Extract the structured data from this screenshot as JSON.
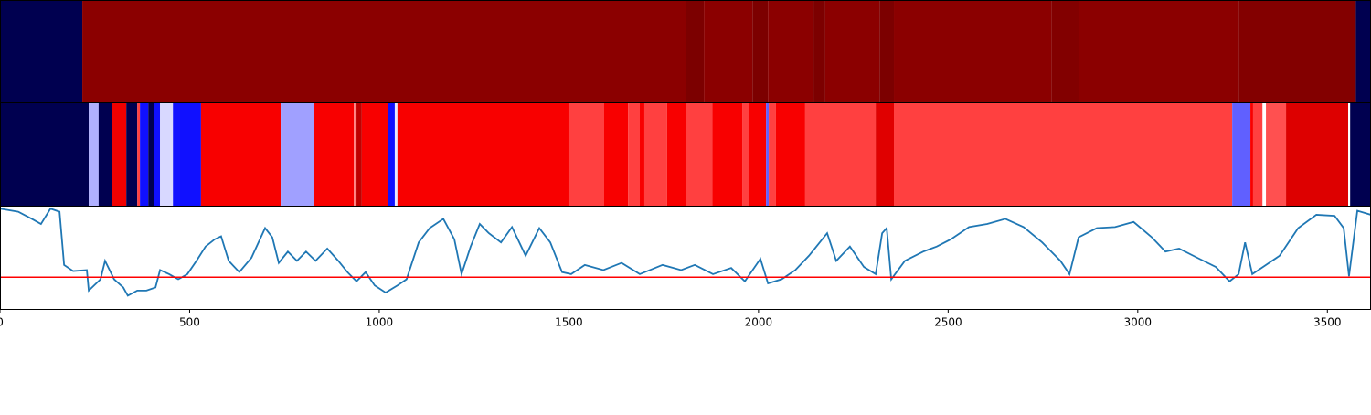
{
  "chart_data": {
    "type": "line",
    "xlim": [
      0,
      3615
    ],
    "xticks": [
      0,
      500,
      1000,
      1500,
      2000,
      2500,
      3000,
      3500
    ],
    "ylim": [
      0,
      1
    ],
    "strips": [
      {
        "segments": [
          {
            "start": 0,
            "end": 217,
            "color": "#000050"
          },
          {
            "start": 217,
            "end": 1808,
            "color": "#8b0000"
          },
          {
            "start": 1808,
            "end": 1856,
            "color": "#7c0000"
          },
          {
            "start": 1856,
            "end": 1984,
            "color": "#8b0000"
          },
          {
            "start": 1984,
            "end": 2025,
            "color": "#7c0000"
          },
          {
            "start": 2025,
            "end": 2145,
            "color": "#8b0000"
          },
          {
            "start": 2145,
            "end": 2176,
            "color": "#7c0000"
          },
          {
            "start": 2176,
            "end": 2319,
            "color": "#8b0000"
          },
          {
            "start": 2319,
            "end": 2357,
            "color": "#7c0000"
          },
          {
            "start": 2357,
            "end": 2772,
            "color": "#8b0000"
          },
          {
            "start": 2772,
            "end": 2844,
            "color": "#820000"
          },
          {
            "start": 2844,
            "end": 3266,
            "color": "#8b0000"
          },
          {
            "start": 3266,
            "end": 3575,
            "color": "#830000"
          },
          {
            "start": 3575,
            "end": 3615,
            "color": "#000050"
          }
        ]
      },
      {
        "segments": [
          {
            "start": 0,
            "end": 234,
            "color": "#000050"
          },
          {
            "start": 234,
            "end": 260,
            "color": "#b0b0ff"
          },
          {
            "start": 260,
            "end": 296,
            "color": "#000050"
          },
          {
            "start": 296,
            "end": 333,
            "color": "#f00000"
          },
          {
            "start": 333,
            "end": 362,
            "color": "#000050"
          },
          {
            "start": 362,
            "end": 369,
            "color": "#ff4040"
          },
          {
            "start": 369,
            "end": 391,
            "color": "#1010ff"
          },
          {
            "start": 391,
            "end": 405,
            "color": "#000050"
          },
          {
            "start": 405,
            "end": 422,
            "color": "#1010ff"
          },
          {
            "start": 422,
            "end": 456,
            "color": "#d8d8ff"
          },
          {
            "start": 456,
            "end": 530,
            "color": "#1010ff"
          },
          {
            "start": 530,
            "end": 740,
            "color": "#f80000"
          },
          {
            "start": 740,
            "end": 827,
            "color": "#a0a0ff"
          },
          {
            "start": 827,
            "end": 933,
            "color": "#f80000"
          },
          {
            "start": 933,
            "end": 940,
            "color": "#ff8080"
          },
          {
            "start": 940,
            "end": 954,
            "color": "#c00000"
          },
          {
            "start": 954,
            "end": 1024,
            "color": "#f80000"
          },
          {
            "start": 1024,
            "end": 1041,
            "color": "#1010ff"
          },
          {
            "start": 1041,
            "end": 1048,
            "color": "#e8e8ff"
          },
          {
            "start": 1048,
            "end": 1499,
            "color": "#f80000"
          },
          {
            "start": 1499,
            "end": 1593,
            "color": "#ff4040"
          },
          {
            "start": 1593,
            "end": 1656,
            "color": "#f80000"
          },
          {
            "start": 1656,
            "end": 1687,
            "color": "#ff4040"
          },
          {
            "start": 1687,
            "end": 1699,
            "color": "#f80000"
          },
          {
            "start": 1699,
            "end": 1759,
            "color": "#ff4040"
          },
          {
            "start": 1759,
            "end": 1808,
            "color": "#f80000"
          },
          {
            "start": 1808,
            "end": 1878,
            "color": "#ff4040"
          },
          {
            "start": 1878,
            "end": 1957,
            "color": "#f80000"
          },
          {
            "start": 1957,
            "end": 1976,
            "color": "#ff4040"
          },
          {
            "start": 1976,
            "end": 2020,
            "color": "#f80000"
          },
          {
            "start": 2020,
            "end": 2027,
            "color": "#6060ff"
          },
          {
            "start": 2027,
            "end": 2046,
            "color": "#ff4040"
          },
          {
            "start": 2046,
            "end": 2123,
            "color": "#f80000"
          },
          {
            "start": 2123,
            "end": 2309,
            "color": "#ff4040"
          },
          {
            "start": 2309,
            "end": 2357,
            "color": "#e00000"
          },
          {
            "start": 2357,
            "end": 3249,
            "color": "#ff4040"
          },
          {
            "start": 3249,
            "end": 3297,
            "color": "#6060ff"
          },
          {
            "start": 3297,
            "end": 3304,
            "color": "#f80000"
          },
          {
            "start": 3304,
            "end": 3329,
            "color": "#ff4040"
          },
          {
            "start": 3329,
            "end": 3338,
            "color": "#ffffff"
          },
          {
            "start": 3338,
            "end": 3391,
            "color": "#ff5050"
          },
          {
            "start": 3391,
            "end": 3555,
            "color": "#dd0000"
          },
          {
            "start": 3555,
            "end": 3560,
            "color": "#ffffff"
          },
          {
            "start": 3560,
            "end": 3615,
            "color": "#000050"
          }
        ]
      }
    ],
    "x": [
      0,
      48,
      84,
      108,
      133,
      157,
      169,
      193,
      229,
      234,
      265,
      277,
      301,
      325,
      337,
      362,
      386,
      410,
      422,
      446,
      470,
      494,
      518,
      542,
      566,
      583,
      603,
      631,
      663,
      699,
      718,
      735,
      759,
      783,
      807,
      832,
      863,
      892,
      916,
      940,
      964,
      988,
      1017,
      1048,
      1072,
      1104,
      1133,
      1169,
      1198,
      1217,
      1241,
      1265,
      1289,
      1321,
      1350,
      1386,
      1422,
      1451,
      1482,
      1506,
      1542,
      1591,
      1639,
      1687,
      1747,
      1796,
      1832,
      1880,
      1928,
      1964,
      2005,
      2025,
      2061,
      2097,
      2133,
      2181,
      2205,
      2241,
      2278,
      2309,
      2326,
      2338,
      2350,
      2386,
      2434,
      2470,
      2507,
      2555,
      2603,
      2651,
      2699,
      2748,
      2796,
      2820,
      2844,
      2892,
      2940,
      2989,
      3037,
      3073,
      3109,
      3157,
      3206,
      3242,
      3266,
      3283,
      3302,
      3338,
      3374,
      3423,
      3471,
      3519,
      3543,
      3557,
      3579,
      3615
    ],
    "series": [
      {
        "color": "#1f77b4",
        "values": [
          0.98,
          0.95,
          0.88,
          0.83,
          0.98,
          0.95,
          0.43,
          0.37,
          0.38,
          0.18,
          0.29,
          0.47,
          0.29,
          0.21,
          0.13,
          0.18,
          0.18,
          0.21,
          0.38,
          0.34,
          0.29,
          0.34,
          0.47,
          0.61,
          0.68,
          0.71,
          0.47,
          0.36,
          0.5,
          0.79,
          0.7,
          0.45,
          0.56,
          0.47,
          0.56,
          0.47,
          0.59,
          0.47,
          0.36,
          0.27,
          0.36,
          0.23,
          0.16,
          0.23,
          0.29,
          0.65,
          0.79,
          0.88,
          0.68,
          0.34,
          0.61,
          0.83,
          0.74,
          0.65,
          0.8,
          0.52,
          0.79,
          0.65,
          0.36,
          0.34,
          0.43,
          0.38,
          0.45,
          0.34,
          0.43,
          0.38,
          0.43,
          0.34,
          0.4,
          0.27,
          0.49,
          0.25,
          0.29,
          0.38,
          0.52,
          0.74,
          0.47,
          0.61,
          0.41,
          0.34,
          0.74,
          0.79,
          0.29,
          0.47,
          0.56,
          0.61,
          0.68,
          0.8,
          0.83,
          0.88,
          0.8,
          0.65,
          0.47,
          0.34,
          0.7,
          0.79,
          0.8,
          0.85,
          0.7,
          0.56,
          0.59,
          0.5,
          0.41,
          0.27,
          0.34,
          0.65,
          0.34,
          0.43,
          0.52,
          0.79,
          0.92,
          0.91,
          0.79,
          0.32,
          0.96,
          0.92
        ]
      }
    ],
    "hline": {
      "value": 0.31,
      "color": "#ff0000"
    }
  }
}
